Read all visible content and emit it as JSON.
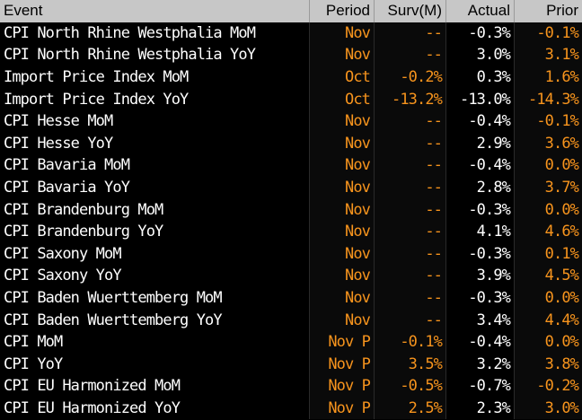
{
  "header": {
    "event": "Event",
    "period": "Period",
    "survey": "Surv(M)",
    "actual": "Actual",
    "prior": "Prior"
  },
  "rows": [
    {
      "event": "CPI North Rhine Westphalia MoM",
      "period": "Nov",
      "survey": "--",
      "actual": "-0.3%",
      "prior": "-0.1%"
    },
    {
      "event": "CPI North Rhine Westphalia YoY",
      "period": "Nov",
      "survey": "--",
      "actual": "3.0%",
      "prior": "3.1%"
    },
    {
      "event": "Import Price Index MoM",
      "period": "Oct",
      "survey": "-0.2%",
      "actual": "0.3%",
      "prior": "1.6%"
    },
    {
      "event": "Import Price Index YoY",
      "period": "Oct",
      "survey": "-13.2%",
      "actual": "-13.0%",
      "prior": "-14.3%"
    },
    {
      "event": "CPI Hesse MoM",
      "period": "Nov",
      "survey": "--",
      "actual": "-0.4%",
      "prior": "-0.1%"
    },
    {
      "event": "CPI Hesse YoY",
      "period": "Nov",
      "survey": "--",
      "actual": "2.9%",
      "prior": "3.6%"
    },
    {
      "event": "CPI Bavaria MoM",
      "period": "Nov",
      "survey": "--",
      "actual": "-0.4%",
      "prior": "0.0%"
    },
    {
      "event": "CPI Bavaria YoY",
      "period": "Nov",
      "survey": "--",
      "actual": "2.8%",
      "prior": "3.7%"
    },
    {
      "event": "CPI Brandenburg MoM",
      "period": "Nov",
      "survey": "--",
      "actual": "-0.3%",
      "prior": "0.0%"
    },
    {
      "event": "CPI Brandenburg YoY",
      "period": "Nov",
      "survey": "--",
      "actual": "4.1%",
      "prior": "4.6%"
    },
    {
      "event": "CPI Saxony MoM",
      "period": "Nov",
      "survey": "--",
      "actual": "-0.3%",
      "prior": "0.1%"
    },
    {
      "event": "CPI Saxony YoY",
      "period": "Nov",
      "survey": "--",
      "actual": "3.9%",
      "prior": "4.5%"
    },
    {
      "event": "CPI Baden Wuerttemberg MoM",
      "period": "Nov",
      "survey": "--",
      "actual": "-0.3%",
      "prior": "0.0%"
    },
    {
      "event": "CPI Baden Wuerttemberg YoY",
      "period": "Nov",
      "survey": "--",
      "actual": "3.4%",
      "prior": "4.4%"
    },
    {
      "event": "CPI MoM",
      "period": "Nov P",
      "survey": "-0.1%",
      "actual": "-0.4%",
      "prior": "0.0%"
    },
    {
      "event": "CPI YoY",
      "period": "Nov P",
      "survey": "3.5%",
      "actual": "3.2%",
      "prior": "3.8%"
    },
    {
      "event": "CPI EU Harmonized MoM",
      "period": "Nov P",
      "survey": "-0.5%",
      "actual": "-0.7%",
      "prior": "-0.2%"
    },
    {
      "event": "CPI EU Harmonized YoY",
      "period": "Nov P",
      "survey": "2.5%",
      "actual": "2.3%",
      "prior": "3.0%"
    }
  ],
  "colors": {
    "header_bg": "#c7c7c7",
    "text_white": "#ffffff",
    "text_orange": "#f7941d",
    "background": "#000000"
  }
}
